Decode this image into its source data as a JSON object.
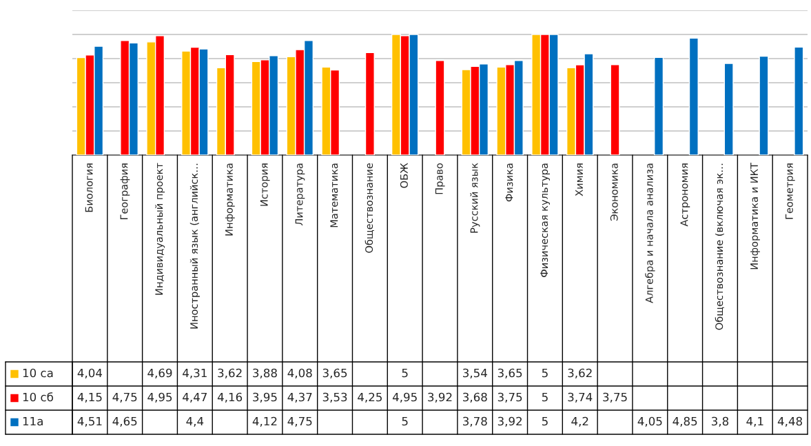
{
  "chart_data": {
    "type": "bar",
    "categories": [
      "Биология",
      "География",
      "Индивидуальный проект",
      "Иностранный язык (английск…",
      "Информатика",
      "История",
      "Литература",
      "Математика",
      "Обществознание",
      "ОБЖ",
      "Право",
      "Русский язык",
      "Физика",
      "Физическая культура",
      "Химия",
      "Экономика",
      "Алгебра и начала анализа",
      "Астрономия",
      "Обществознание (включая эк…",
      "Информатика и ИКТ",
      "Геометрия"
    ],
    "series": [
      {
        "name": "10 са",
        "color": "#ffc000",
        "values": [
          4.04,
          null,
          4.69,
          4.31,
          3.62,
          3.88,
          4.08,
          3.65,
          null,
          5,
          null,
          3.54,
          3.65,
          5,
          3.62,
          null,
          null,
          null,
          null,
          null,
          null
        ],
        "value_labels": [
          "4,04",
          null,
          "4,69",
          "4,31",
          "3,62",
          "3,88",
          "4,08",
          "3,65",
          null,
          "5",
          null,
          "3,54",
          "3,65",
          "5",
          "3,62",
          null,
          null,
          null,
          null,
          null,
          null
        ]
      },
      {
        "name": "10 сб",
        "color": "#ff0000",
        "values": [
          4.15,
          4.75,
          4.95,
          4.47,
          4.16,
          3.95,
          4.37,
          3.53,
          4.25,
          4.95,
          3.92,
          3.68,
          3.75,
          5,
          3.74,
          3.75,
          null,
          null,
          null,
          null,
          null
        ],
        "value_labels": [
          "4,15",
          "4,75",
          "4,95",
          "4,47",
          "4,16",
          "3,95",
          "4,37",
          "3,53",
          "4,25",
          "4,95",
          "3,92",
          "3,68",
          "3,75",
          "5",
          "3,74",
          "3,75",
          null,
          null,
          null,
          null,
          null
        ]
      },
      {
        "name": "11а",
        "color": "#0070c0",
        "values": [
          4.51,
          4.65,
          null,
          4.4,
          null,
          4.12,
          4.75,
          null,
          null,
          5,
          null,
          3.78,
          3.92,
          5,
          4.2,
          null,
          4.05,
          4.85,
          3.8,
          4.1,
          4.48
        ],
        "value_labels": [
          "4,51",
          "4,65",
          null,
          "4,4",
          null,
          "4,12",
          "4,75",
          null,
          null,
          "5",
          null,
          "3,78",
          "3,92",
          "5",
          "4,2",
          null,
          "4,05",
          "4,85",
          "3,8",
          "4,1",
          "4,48"
        ]
      }
    ],
    "ylim": [
      0,
      6
    ],
    "yticks": [
      {
        "value": 0,
        "label": null
      },
      {
        "value": 1,
        "label": null
      },
      {
        "value": 2,
        "label": null
      },
      {
        "value": 3,
        "label": null
      },
      {
        "value": 4,
        "label": null
      },
      {
        "value": 5,
        "label": null
      },
      {
        "value": 6,
        "label": null
      }
    ],
    "tick_labels": "x",
    "grid": "y",
    "legend": "bottom left"
  }
}
